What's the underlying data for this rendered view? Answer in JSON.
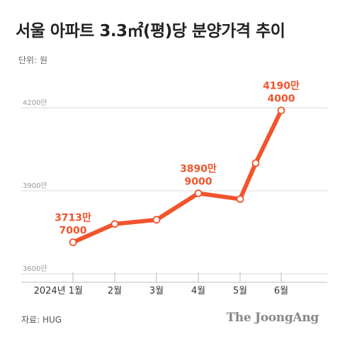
{
  "title": "서울 아파트 3.3㎡(평)당 분양가격 추이",
  "unit_label": "단위: 원",
  "source_label": "자료: HUG",
  "brand": "The JoongAng",
  "chart_data": {
    "type": "line",
    "title": "서울 아파트 3.3㎡(평)당 분양가격 추이",
    "ylabel": "단위: 원",
    "categories": [
      "2024년 1월",
      "2월",
      "3월",
      "4월",
      "5월",
      "6월"
    ],
    "x": [
      "2024-01",
      "2024-02",
      "2024-03",
      "2024-04",
      "2024-05",
      "2024-05.5",
      "2024-06"
    ],
    "values": [
      37137000,
      37800000,
      37950000,
      38909000,
      38700000,
      40000000,
      41904000
    ],
    "ylim": [
      36000000,
      42000000
    ],
    "yticks": [
      {
        "value": 36000000,
        "label": "3600만"
      },
      {
        "value": 39000000,
        "label": "3900만"
      },
      {
        "value": 42000000,
        "label": "4200만"
      }
    ],
    "data_labels": [
      {
        "index": 0,
        "line1": "3713만",
        "line2": "7000"
      },
      {
        "index": 3,
        "line1": "3890만",
        "line2": "9000"
      },
      {
        "index": 6,
        "line1": "4190만",
        "line2": "4000"
      }
    ],
    "colors": {
      "line": "#f2542d",
      "grid": "#d9d9d9"
    },
    "grid": true
  }
}
